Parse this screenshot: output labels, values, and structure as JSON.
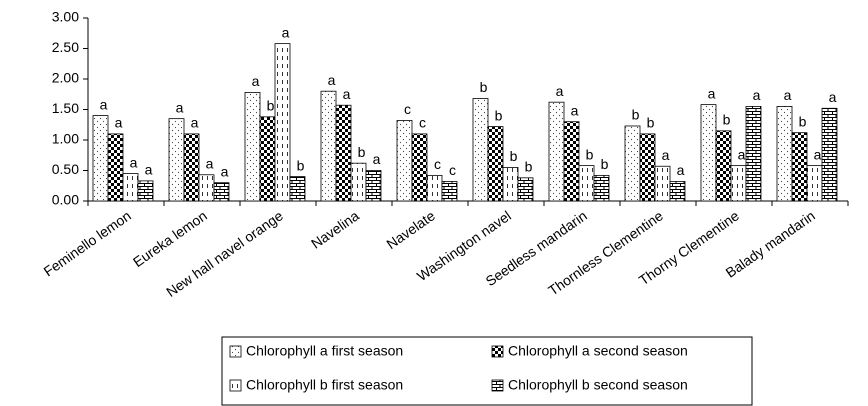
{
  "chart_data": {
    "type": "bar",
    "categories": [
      "Feminello lemon",
      "Eureka lemon",
      "New hall navel orange",
      "Navelina",
      "Navelate",
      "Washington navel",
      "Seedless mandarin",
      "Thornless Clementine",
      "Thorny Clementine",
      "Balady mandarin"
    ],
    "series": [
      {
        "name": "Chlorophyll a first season",
        "values": [
          1.4,
          1.35,
          1.78,
          1.8,
          1.32,
          1.68,
          1.62,
          1.23,
          1.58,
          1.55
        ],
        "letters": [
          "a",
          "a",
          "a",
          "a",
          "c",
          "b",
          "a",
          "b",
          "a",
          "a"
        ]
      },
      {
        "name": "Chlorophyll a second season",
        "values": [
          1.1,
          1.1,
          1.38,
          1.57,
          1.1,
          1.22,
          1.3,
          1.1,
          1.15,
          1.12
        ],
        "letters": [
          "a",
          "a",
          "b",
          "a",
          "c",
          "b",
          "a",
          "b",
          "b",
          "b"
        ]
      },
      {
        "name": "Chlorophyll b first season",
        "values": [
          0.45,
          0.43,
          2.58,
          0.62,
          0.42,
          0.55,
          0.58,
          0.57,
          0.58,
          0.58
        ],
        "letters": [
          "a",
          "a",
          "a",
          "b",
          "c",
          "b",
          "b",
          "a",
          "a",
          "a"
        ]
      },
      {
        "name": "Chlorophyll b second season",
        "values": [
          0.33,
          0.3,
          0.4,
          0.5,
          0.32,
          0.38,
          0.42,
          0.32,
          1.55,
          1.52
        ],
        "letters": [
          "a",
          "a",
          "b",
          "a",
          "c",
          "b",
          "b",
          "a",
          "a",
          "a"
        ]
      }
    ],
    "ylim": [
      0,
      3
    ],
    "yticks": [
      {
        "value": 0,
        "label": "0.00"
      },
      {
        "value": 0.5,
        "label": "0.50"
      },
      {
        "value": 1,
        "label": "1.00"
      },
      {
        "value": 1.5,
        "label": "1.50"
      },
      {
        "value": 2,
        "label": "2.00"
      },
      {
        "value": 2.5,
        "label": "2.50"
      },
      {
        "value": 3,
        "label": "3.00"
      }
    ]
  }
}
